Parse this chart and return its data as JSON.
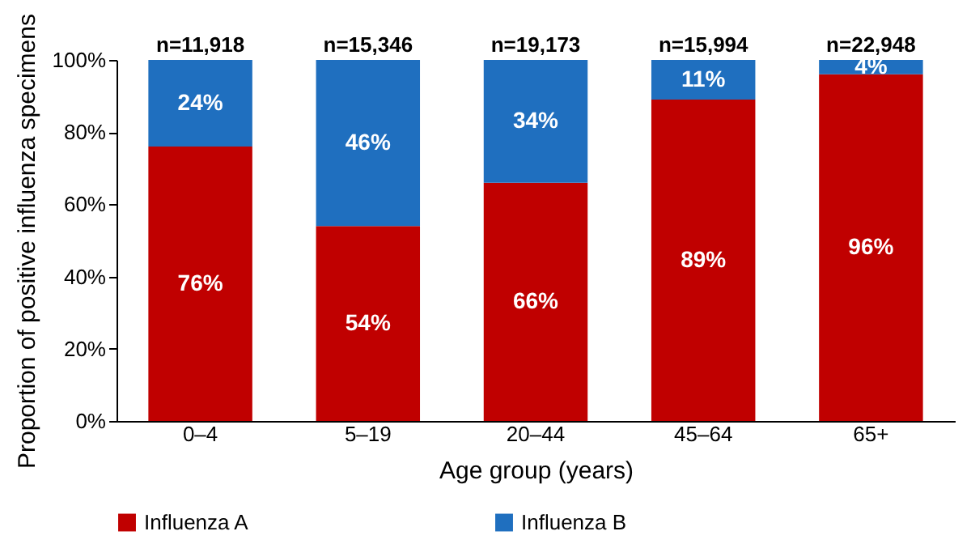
{
  "chart_data": {
    "type": "bar",
    "stacked": true,
    "xlabel": "Age group (years)",
    "ylabel": "Proportion of positive influenza specimens",
    "categories": [
      "0–4",
      "5–19",
      "20–44",
      "45–64",
      "65+"
    ],
    "series": [
      {
        "name": "Influenza A",
        "color": "#c00000",
        "values": [
          76,
          54,
          66,
          89,
          96
        ],
        "value_labels": [
          "76%",
          "54%",
          "66%",
          "89%",
          "96%"
        ]
      },
      {
        "name": "Influenza B",
        "color": "#1f6fbf",
        "values": [
          24,
          46,
          34,
          11,
          4
        ],
        "value_labels": [
          "24%",
          "46%",
          "34%",
          "11%",
          "4%"
        ]
      }
    ],
    "annotations": [
      {
        "text": "n=11,918",
        "x": "0–4",
        "y": 100
      },
      {
        "text": "n=15,346",
        "x": "5–19",
        "y": 100
      },
      {
        "text": "n=19,173",
        "x": "20–44",
        "y": 100
      },
      {
        "text": "n=15,994",
        "x": "45–64",
        "y": 100
      },
      {
        "text": "n=22,948",
        "x": "65+",
        "y": 100
      }
    ],
    "ylim": [
      0,
      100
    ],
    "yticks": [
      {
        "value": 0,
        "label": "0%"
      },
      {
        "value": 20,
        "label": "20%"
      },
      {
        "value": 40,
        "label": "40%"
      },
      {
        "value": 60,
        "label": "60%"
      },
      {
        "value": 80,
        "label": "80%"
      },
      {
        "value": 100,
        "label": "100%"
      }
    ],
    "grid": false,
    "legend": "bottom"
  }
}
